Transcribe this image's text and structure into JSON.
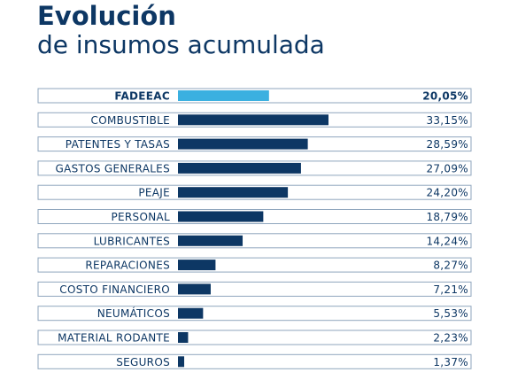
{
  "chart_data": {
    "type": "bar",
    "orientation": "horizontal",
    "title": "Evolución",
    "subtitle": "de insumos acumulada",
    "categories": [
      "FADEEAC",
      "COMBUSTIBLE",
      "PATENTES Y TASAS",
      "GASTOS GENERALES",
      "PEAJE",
      "PERSONAL",
      "LUBRICANTES",
      "REPARACIONES",
      "COSTO FINANCIERO",
      "NEUMÁTICOS",
      "MATERIAL RODANTE",
      "SEGUROS"
    ],
    "values": [
      20.05,
      33.15,
      28.59,
      27.09,
      24.2,
      18.79,
      14.24,
      8.27,
      7.21,
      5.53,
      2.23,
      1.37
    ],
    "value_labels": [
      "20,05%",
      "33,15%",
      "28,59%",
      "27,09%",
      "24,20%",
      "18,79%",
      "14,24%",
      "8,27%",
      "7,21%",
      "5,53%",
      "2,23%",
      "1,37%"
    ],
    "colors": [
      "#3bb0e0",
      "#0d3764",
      "#0d3764",
      "#0d3764",
      "#0d3764",
      "#0d3764",
      "#0d3764",
      "#0d3764",
      "#0d3764",
      "#0d3764",
      "#0d3764",
      "#0d3764"
    ]
  }
}
